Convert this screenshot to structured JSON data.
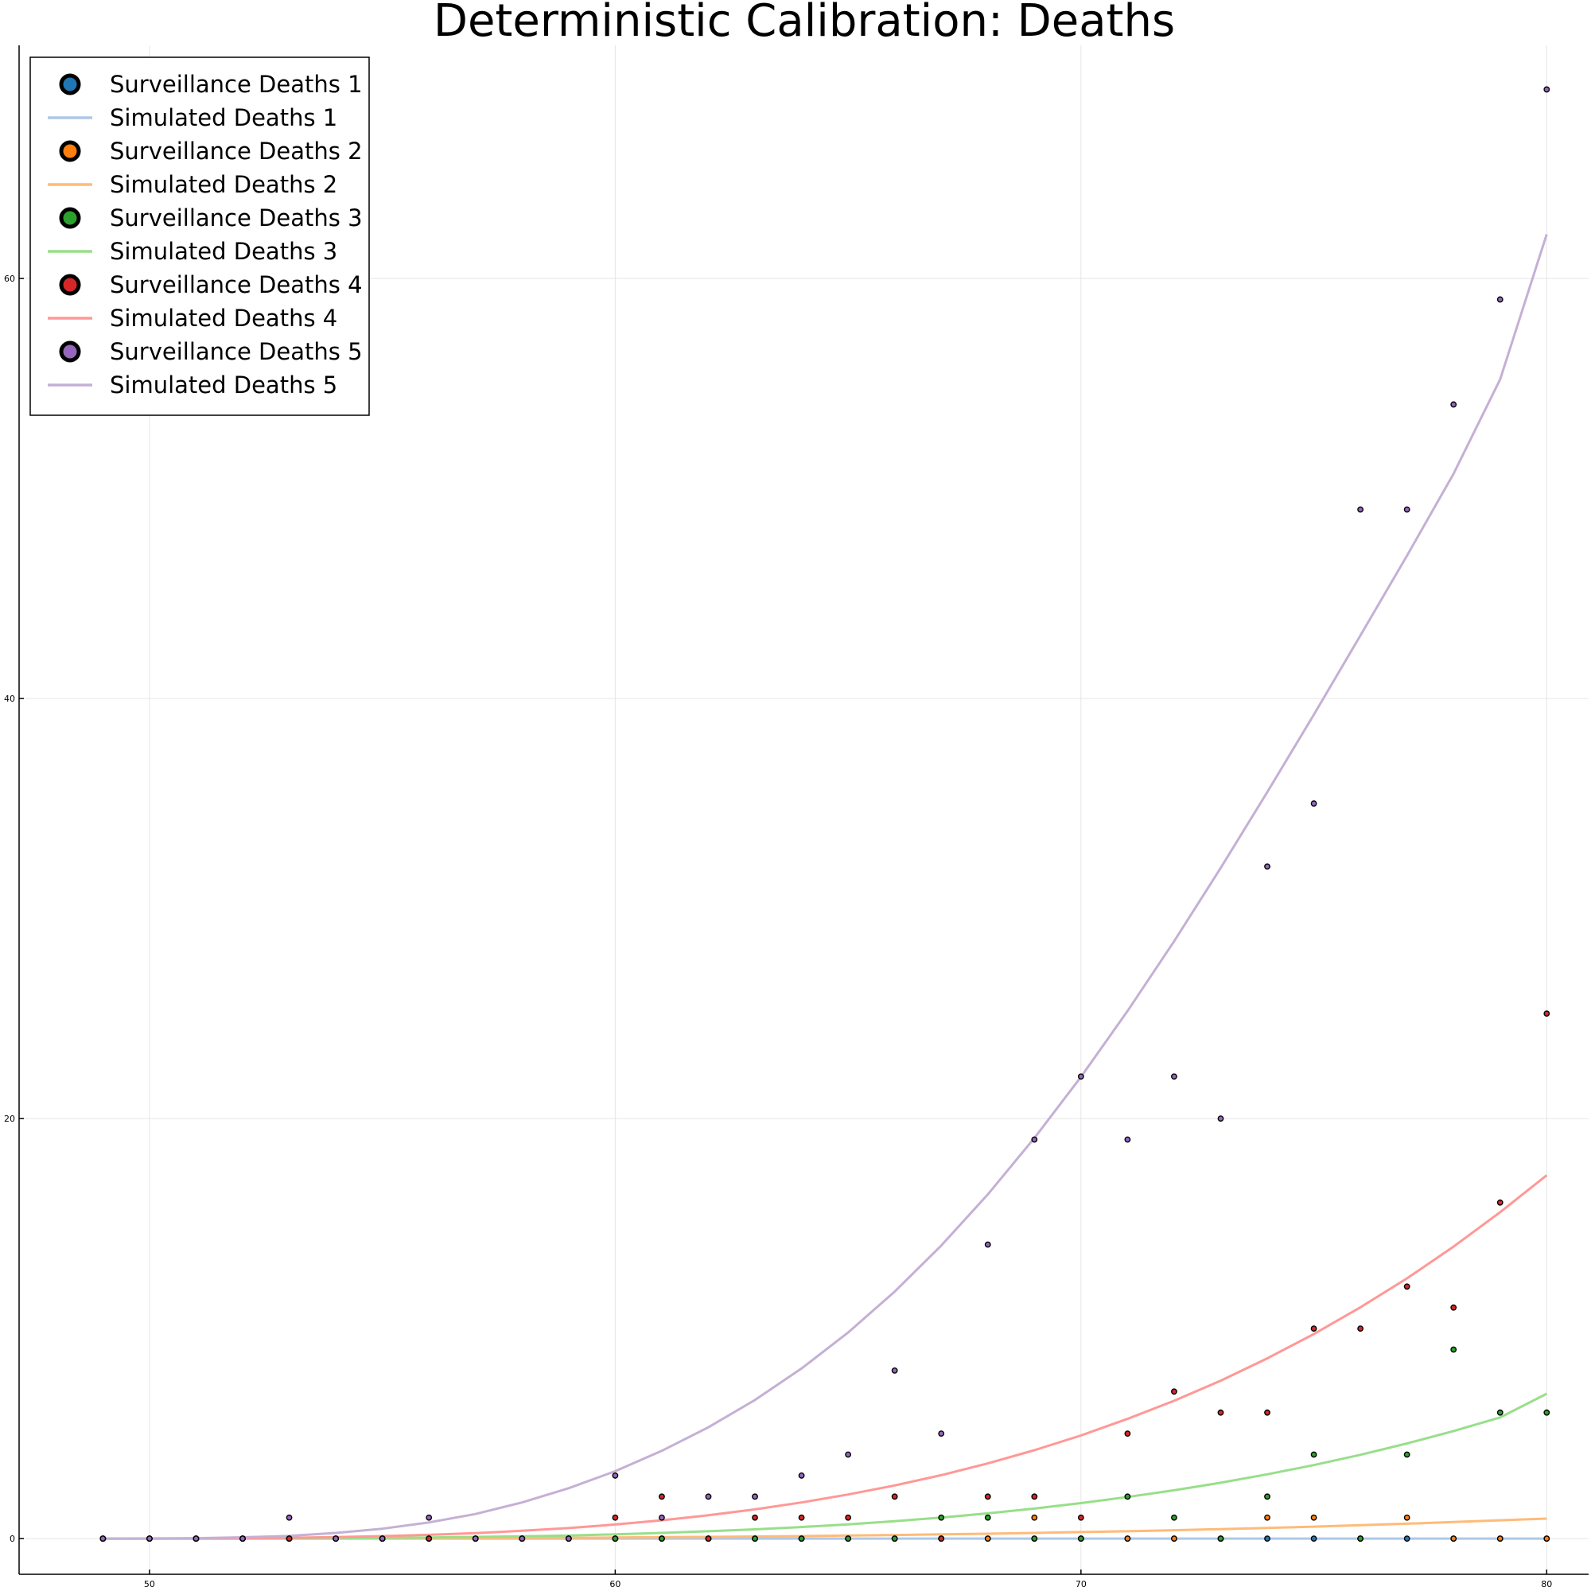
{
  "chart_data": {
    "type": "scatter",
    "title": "Deterministic Calibration: Deaths",
    "xlabel": "",
    "ylabel": "",
    "xlim": [
      47.2,
      80.9
    ],
    "ylim": [
      -1.7,
      71.1
    ],
    "x_ticks": [
      50,
      60,
      70,
      80
    ],
    "y_ticks": [
      0,
      20,
      40,
      60
    ],
    "grid": true,
    "legend_position": "top-left",
    "x": [
      49,
      50,
      51,
      52,
      53,
      54,
      55,
      56,
      57,
      58,
      59,
      60,
      61,
      62,
      63,
      64,
      65,
      66,
      67,
      68,
      69,
      70,
      71,
      72,
      73,
      74,
      75,
      76,
      77,
      78,
      79,
      80
    ],
    "series": [
      {
        "name": "Surveillance Deaths 1",
        "kind": "points",
        "color": "#1f77b4",
        "values": [
          0,
          0,
          0,
          0,
          0,
          0,
          0,
          0,
          0,
          0,
          0,
          0,
          0,
          0,
          0,
          0,
          0,
          0,
          0,
          0,
          0,
          0,
          0,
          0,
          0,
          0,
          0,
          0,
          0,
          0,
          0,
          0
        ]
      },
      {
        "name": "Simulated Deaths 1",
        "kind": "line",
        "color": "#aec7e8",
        "values": [
          0,
          0,
          0,
          0,
          0,
          0,
          0,
          0,
          0,
          0,
          0,
          0,
          0,
          0,
          0,
          0,
          0,
          0,
          0,
          0,
          0,
          0,
          0,
          0,
          0,
          0,
          0,
          0,
          0,
          0,
          0,
          0
        ]
      },
      {
        "name": "Surveillance Deaths 2",
        "kind": "points",
        "color": "#ff7f0e",
        "values": [
          0,
          0,
          0,
          0,
          0,
          0,
          0,
          0,
          0,
          0,
          0,
          0,
          0,
          0,
          0,
          0,
          0,
          0,
          0,
          0,
          1,
          0,
          0,
          0,
          0,
          1,
          1,
          0,
          1,
          0,
          0,
          0
        ]
      },
      {
        "name": "Simulated Deaths 2",
        "kind": "line",
        "color": "#ffbb78",
        "values": [
          0,
          0,
          0,
          0,
          0,
          0,
          0.01,
          0.01,
          0.02,
          0.03,
          0.04,
          0.05,
          0.07,
          0.08,
          0.1,
          0.12,
          0.15,
          0.17,
          0.2,
          0.23,
          0.27,
          0.31,
          0.35,
          0.4,
          0.45,
          0.51,
          0.57,
          0.64,
          0.71,
          0.79,
          0.87,
          0.95
        ]
      },
      {
        "name": "Surveillance Deaths 3",
        "kind": "points",
        "color": "#2ca02c",
        "values": [
          0,
          0,
          0,
          0,
          0,
          0,
          0,
          0,
          0,
          0,
          0,
          0,
          0,
          0,
          0,
          0,
          0,
          0,
          1,
          1,
          0,
          0,
          2,
          1,
          0,
          2,
          4,
          0,
          4,
          9,
          6,
          6
        ]
      },
      {
        "name": "Simulated Deaths 3",
        "kind": "line",
        "color": "#98df8a",
        "values": [
          0,
          0,
          0,
          0,
          0.01,
          0.02,
          0.03,
          0.05,
          0.08,
          0.11,
          0.15,
          0.2,
          0.27,
          0.35,
          0.44,
          0.55,
          0.68,
          0.83,
          1.0,
          1.2,
          1.43,
          1.69,
          1.98,
          2.3,
          2.66,
          3.06,
          3.5,
          3.99,
          4.53,
          5.12,
          5.77,
          6.9
        ]
      },
      {
        "name": "Surveillance Deaths 4",
        "kind": "points",
        "color": "#d62728",
        "values": [
          0,
          0,
          0,
          0,
          0,
          0,
          0,
          0,
          0,
          0,
          0,
          1,
          2,
          0,
          1,
          1,
          1,
          2,
          0,
          2,
          2,
          1,
          5,
          7,
          6,
          6,
          10,
          10,
          12,
          11,
          16,
          25
        ]
      },
      {
        "name": "Simulated Deaths 4",
        "kind": "line",
        "color": "#ff9896",
        "values": [
          0,
          0,
          0.01,
          0.02,
          0.04,
          0.07,
          0.12,
          0.18,
          0.26,
          0.37,
          0.5,
          0.67,
          0.87,
          1.11,
          1.39,
          1.72,
          2.1,
          2.53,
          3.02,
          3.58,
          4.21,
          4.91,
          5.7,
          6.56,
          7.52,
          8.58,
          9.74,
          11.01,
          12.39,
          13.9,
          15.54,
          17.3
        ]
      },
      {
        "name": "Surveillance Deaths 5",
        "kind": "points",
        "color": "#9467bd",
        "values": [
          0,
          0,
          0,
          0,
          1,
          0,
          0,
          1,
          0,
          0,
          0,
          3,
          1,
          2,
          2,
          3,
          4,
          8,
          5,
          14,
          19,
          22,
          19,
          22,
          20,
          32,
          35,
          49,
          49,
          54,
          59,
          69
        ]
      },
      {
        "name": "Simulated Deaths 5",
        "kind": "line",
        "color": "#c5b0d5",
        "values": [
          0,
          0.01,
          0.02,
          0.06,
          0.13,
          0.27,
          0.47,
          0.77,
          1.17,
          1.72,
          2.4,
          3.21,
          4.18,
          5.3,
          6.6,
          8.1,
          9.81,
          11.76,
          13.95,
          16.39,
          19.07,
          21.98,
          25.12,
          28.44,
          31.93,
          35.54,
          39.23,
          43.0,
          46.8,
          50.7,
          55.2,
          62.1
        ]
      }
    ]
  }
}
